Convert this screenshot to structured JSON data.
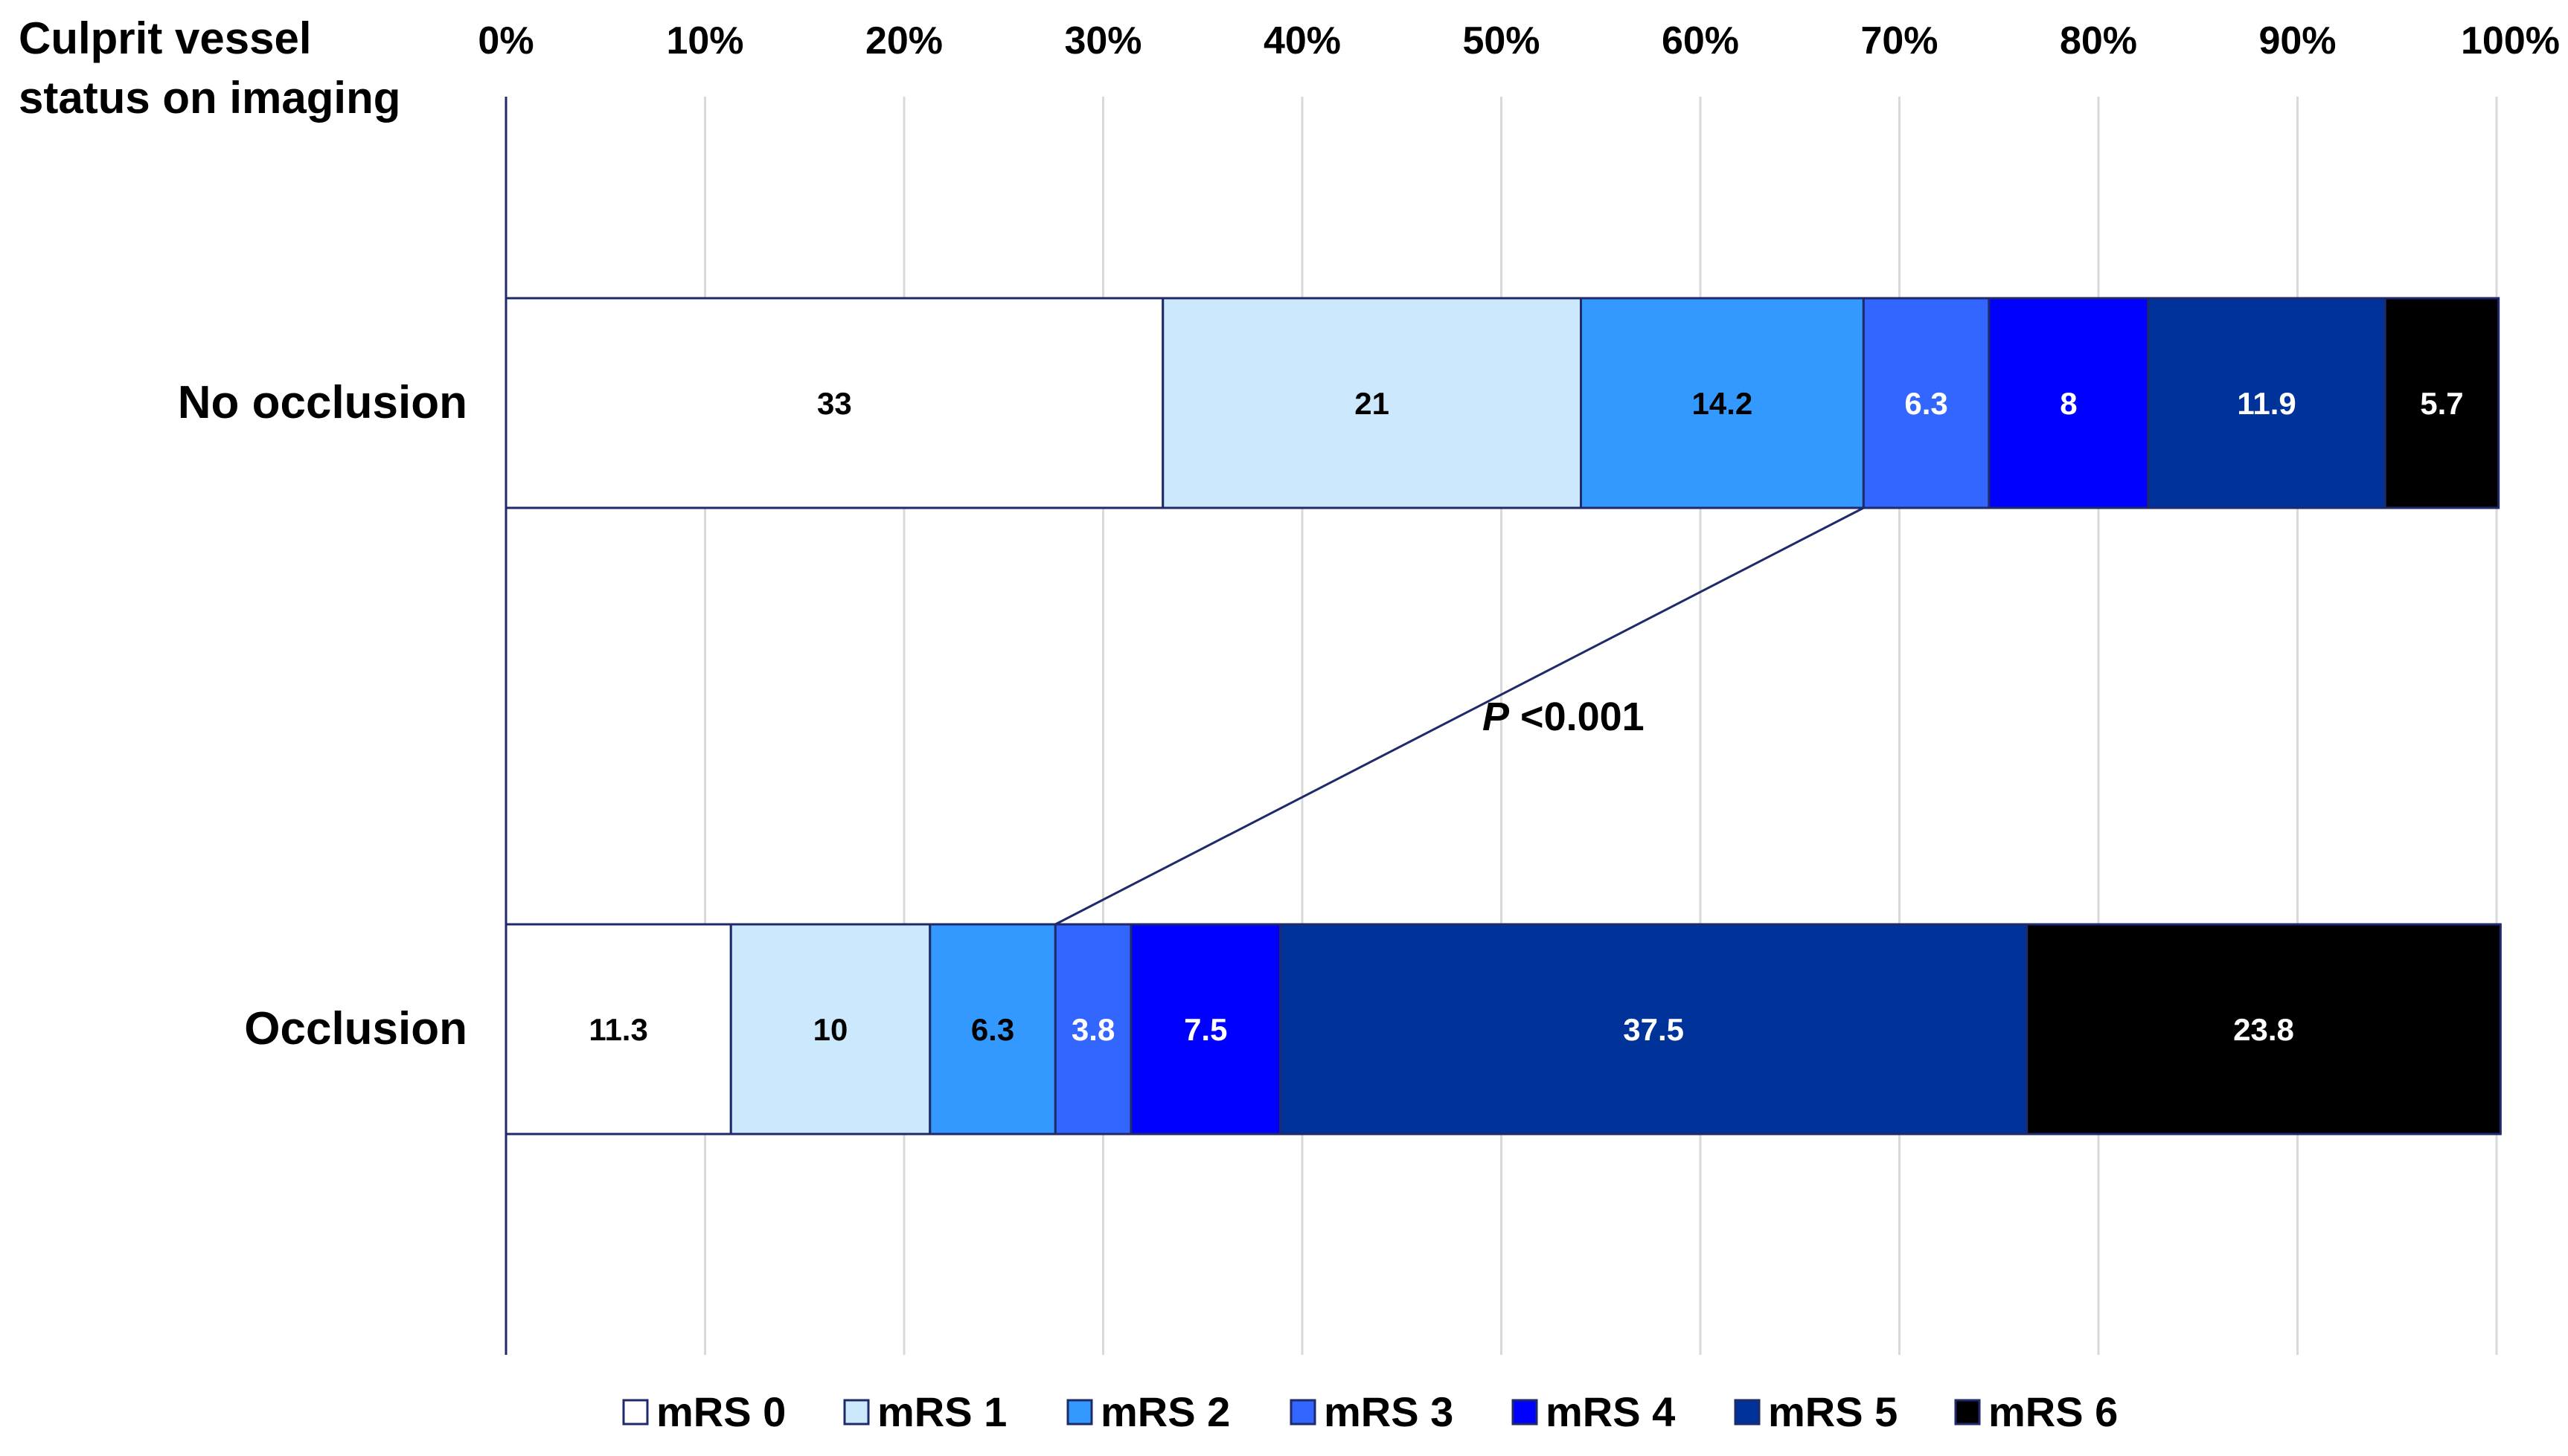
{
  "chart_data": {
    "type": "bar",
    "orientation": "horizontal",
    "stacked": "percent",
    "yaxis_title": "Culprit vessel\nstatus on imaging",
    "categories": [
      "No occlusion",
      "Occlusion"
    ],
    "x_ticks": [
      "0%",
      "10%",
      "20%",
      "30%",
      "40%",
      "50%",
      "60%",
      "70%",
      "80%",
      "90%",
      "100%"
    ],
    "xlim": [
      0,
      100
    ],
    "x_axis_position": "top",
    "grid": true,
    "legend_position": "bottom",
    "series": [
      {
        "name": "mRS 0",
        "color": "#ffffff",
        "label_color": "#000000",
        "values": [
          33,
          11.3
        ]
      },
      {
        "name": "mRS 1",
        "color": "#cce8fc",
        "label_color": "#000000",
        "values": [
          21,
          10
        ]
      },
      {
        "name": "mRS 2",
        "color": "#3399ff",
        "label_color": "#000000",
        "values": [
          14.2,
          6.3
        ]
      },
      {
        "name": "mRS 3",
        "color": "#3366ff",
        "label_color": "#ffffff",
        "values": [
          6.3,
          3.8
        ]
      },
      {
        "name": "mRS 4",
        "color": "#0000ff",
        "label_color": "#ffffff",
        "values": [
          8,
          7.5
        ]
      },
      {
        "name": "mRS 5",
        "color": "#003399",
        "label_color": "#ffffff",
        "values": [
          11.9,
          37.5
        ]
      },
      {
        "name": "mRS 6",
        "color": "#000000",
        "label_color": "#ffffff",
        "values": [
          5.7,
          23.8
        ]
      }
    ],
    "annotation": {
      "p_symbol": "P",
      "text": " <0.001",
      "connects": "cumulative mRS 0–2: No occlusion ↔ Occlusion"
    }
  }
}
